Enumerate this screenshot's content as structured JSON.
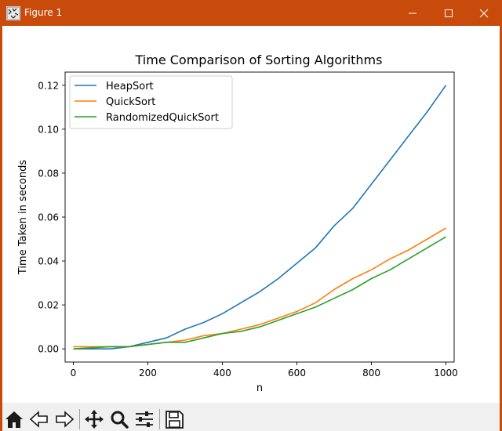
{
  "window": {
    "title": "Figure 1",
    "controls": [
      "minimize",
      "maximize",
      "close"
    ],
    "accent_color": "#c84b0c"
  },
  "toolbar": {
    "buttons": [
      "home-icon",
      "back-icon",
      "forward-icon",
      "pan-icon",
      "zoom-icon",
      "configure-subplots-icon",
      "save-icon"
    ]
  },
  "chart_data": {
    "type": "line",
    "title": "Time Comparison of Sorting Algorithms",
    "xlabel": "n",
    "ylabel": "Time Taken in seconds",
    "xlim": [
      -22,
      1022
    ],
    "ylim": [
      -0.006,
      0.126
    ],
    "xticks": [
      0,
      200,
      400,
      600,
      800,
      1000
    ],
    "xtick_labels": [
      "0",
      "200",
      "400",
      "600",
      "800",
      "1000"
    ],
    "yticks": [
      0.0,
      0.02,
      0.04,
      0.06,
      0.08,
      0.1,
      0.12
    ],
    "ytick_labels": [
      "0.00",
      "0.02",
      "0.04",
      "0.06",
      "0.08",
      "0.10",
      "0.12"
    ],
    "grid": false,
    "legend_position": "upper-left",
    "series": [
      {
        "name": "HeapSort",
        "color": "#1f77b4",
        "x": [
          0,
          100,
          150,
          200,
          250,
          300,
          350,
          400,
          450,
          500,
          550,
          600,
          650,
          700,
          750,
          800,
          850,
          900,
          950,
          1000
        ],
        "y": [
          0.0,
          0.0,
          0.001,
          0.003,
          0.005,
          0.009,
          0.012,
          0.016,
          0.021,
          0.026,
          0.032,
          0.039,
          0.046,
          0.056,
          0.064,
          0.075,
          0.086,
          0.097,
          0.108,
          0.12
        ]
      },
      {
        "name": "QuickSort",
        "color": "#ff7f0e",
        "x": [
          0,
          100,
          150,
          200,
          250,
          300,
          350,
          400,
          450,
          500,
          550,
          600,
          650,
          700,
          750,
          800,
          850,
          900,
          950,
          1000
        ],
        "y": [
          0.001,
          0.001,
          0.001,
          0.002,
          0.003,
          0.004,
          0.006,
          0.007,
          0.009,
          0.011,
          0.014,
          0.017,
          0.021,
          0.027,
          0.032,
          0.036,
          0.041,
          0.045,
          0.05,
          0.055
        ]
      },
      {
        "name": "RandomizedQuickSort",
        "color": "#2ca02c",
        "x": [
          0,
          100,
          150,
          200,
          250,
          300,
          350,
          400,
          450,
          500,
          550,
          600,
          650,
          700,
          750,
          800,
          850,
          900,
          950,
          1000
        ],
        "y": [
          0.0,
          0.001,
          0.001,
          0.002,
          0.003,
          0.003,
          0.005,
          0.007,
          0.008,
          0.01,
          0.013,
          0.016,
          0.019,
          0.023,
          0.027,
          0.032,
          0.036,
          0.041,
          0.046,
          0.051
        ]
      }
    ]
  }
}
